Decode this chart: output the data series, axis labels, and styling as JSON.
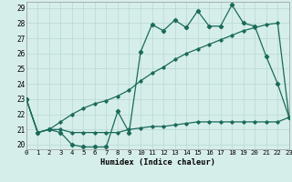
{
  "xlabel": "Humidex (Indice chaleur)",
  "background_color": "#d6eeea",
  "grid_color": "#b8d8d4",
  "line_color": "#1a6b5a",
  "x_ticks": [
    0,
    1,
    2,
    3,
    4,
    5,
    6,
    7,
    8,
    9,
    10,
    11,
    12,
    13,
    14,
    15,
    16,
    17,
    18,
    19,
    20,
    21,
    22,
    23
  ],
  "y_ticks": [
    20,
    21,
    22,
    23,
    24,
    25,
    26,
    27,
    28,
    29
  ],
  "xlim": [
    0,
    23
  ],
  "ylim": [
    19.7,
    29.4
  ],
  "series1": [
    23.0,
    20.8,
    21.0,
    20.8,
    20.0,
    19.85,
    19.85,
    19.85,
    22.2,
    20.8,
    26.1,
    27.9,
    27.5,
    28.2,
    27.7,
    28.8,
    27.8,
    27.8,
    29.2,
    28.0,
    27.8,
    25.8,
    24.0,
    21.8
  ],
  "series2": [
    23.0,
    20.8,
    21.0,
    21.5,
    22.0,
    22.4,
    22.7,
    22.9,
    23.2,
    23.6,
    24.2,
    24.7,
    25.1,
    25.6,
    26.0,
    26.3,
    26.6,
    26.9,
    27.2,
    27.5,
    27.7,
    27.9,
    28.0,
    21.8
  ],
  "series3": [
    23.0,
    20.8,
    21.0,
    21.0,
    20.8,
    20.8,
    20.8,
    20.8,
    20.8,
    21.0,
    21.1,
    21.2,
    21.2,
    21.3,
    21.4,
    21.5,
    21.5,
    21.5,
    21.5,
    21.5,
    21.5,
    21.5,
    21.5,
    21.8
  ]
}
